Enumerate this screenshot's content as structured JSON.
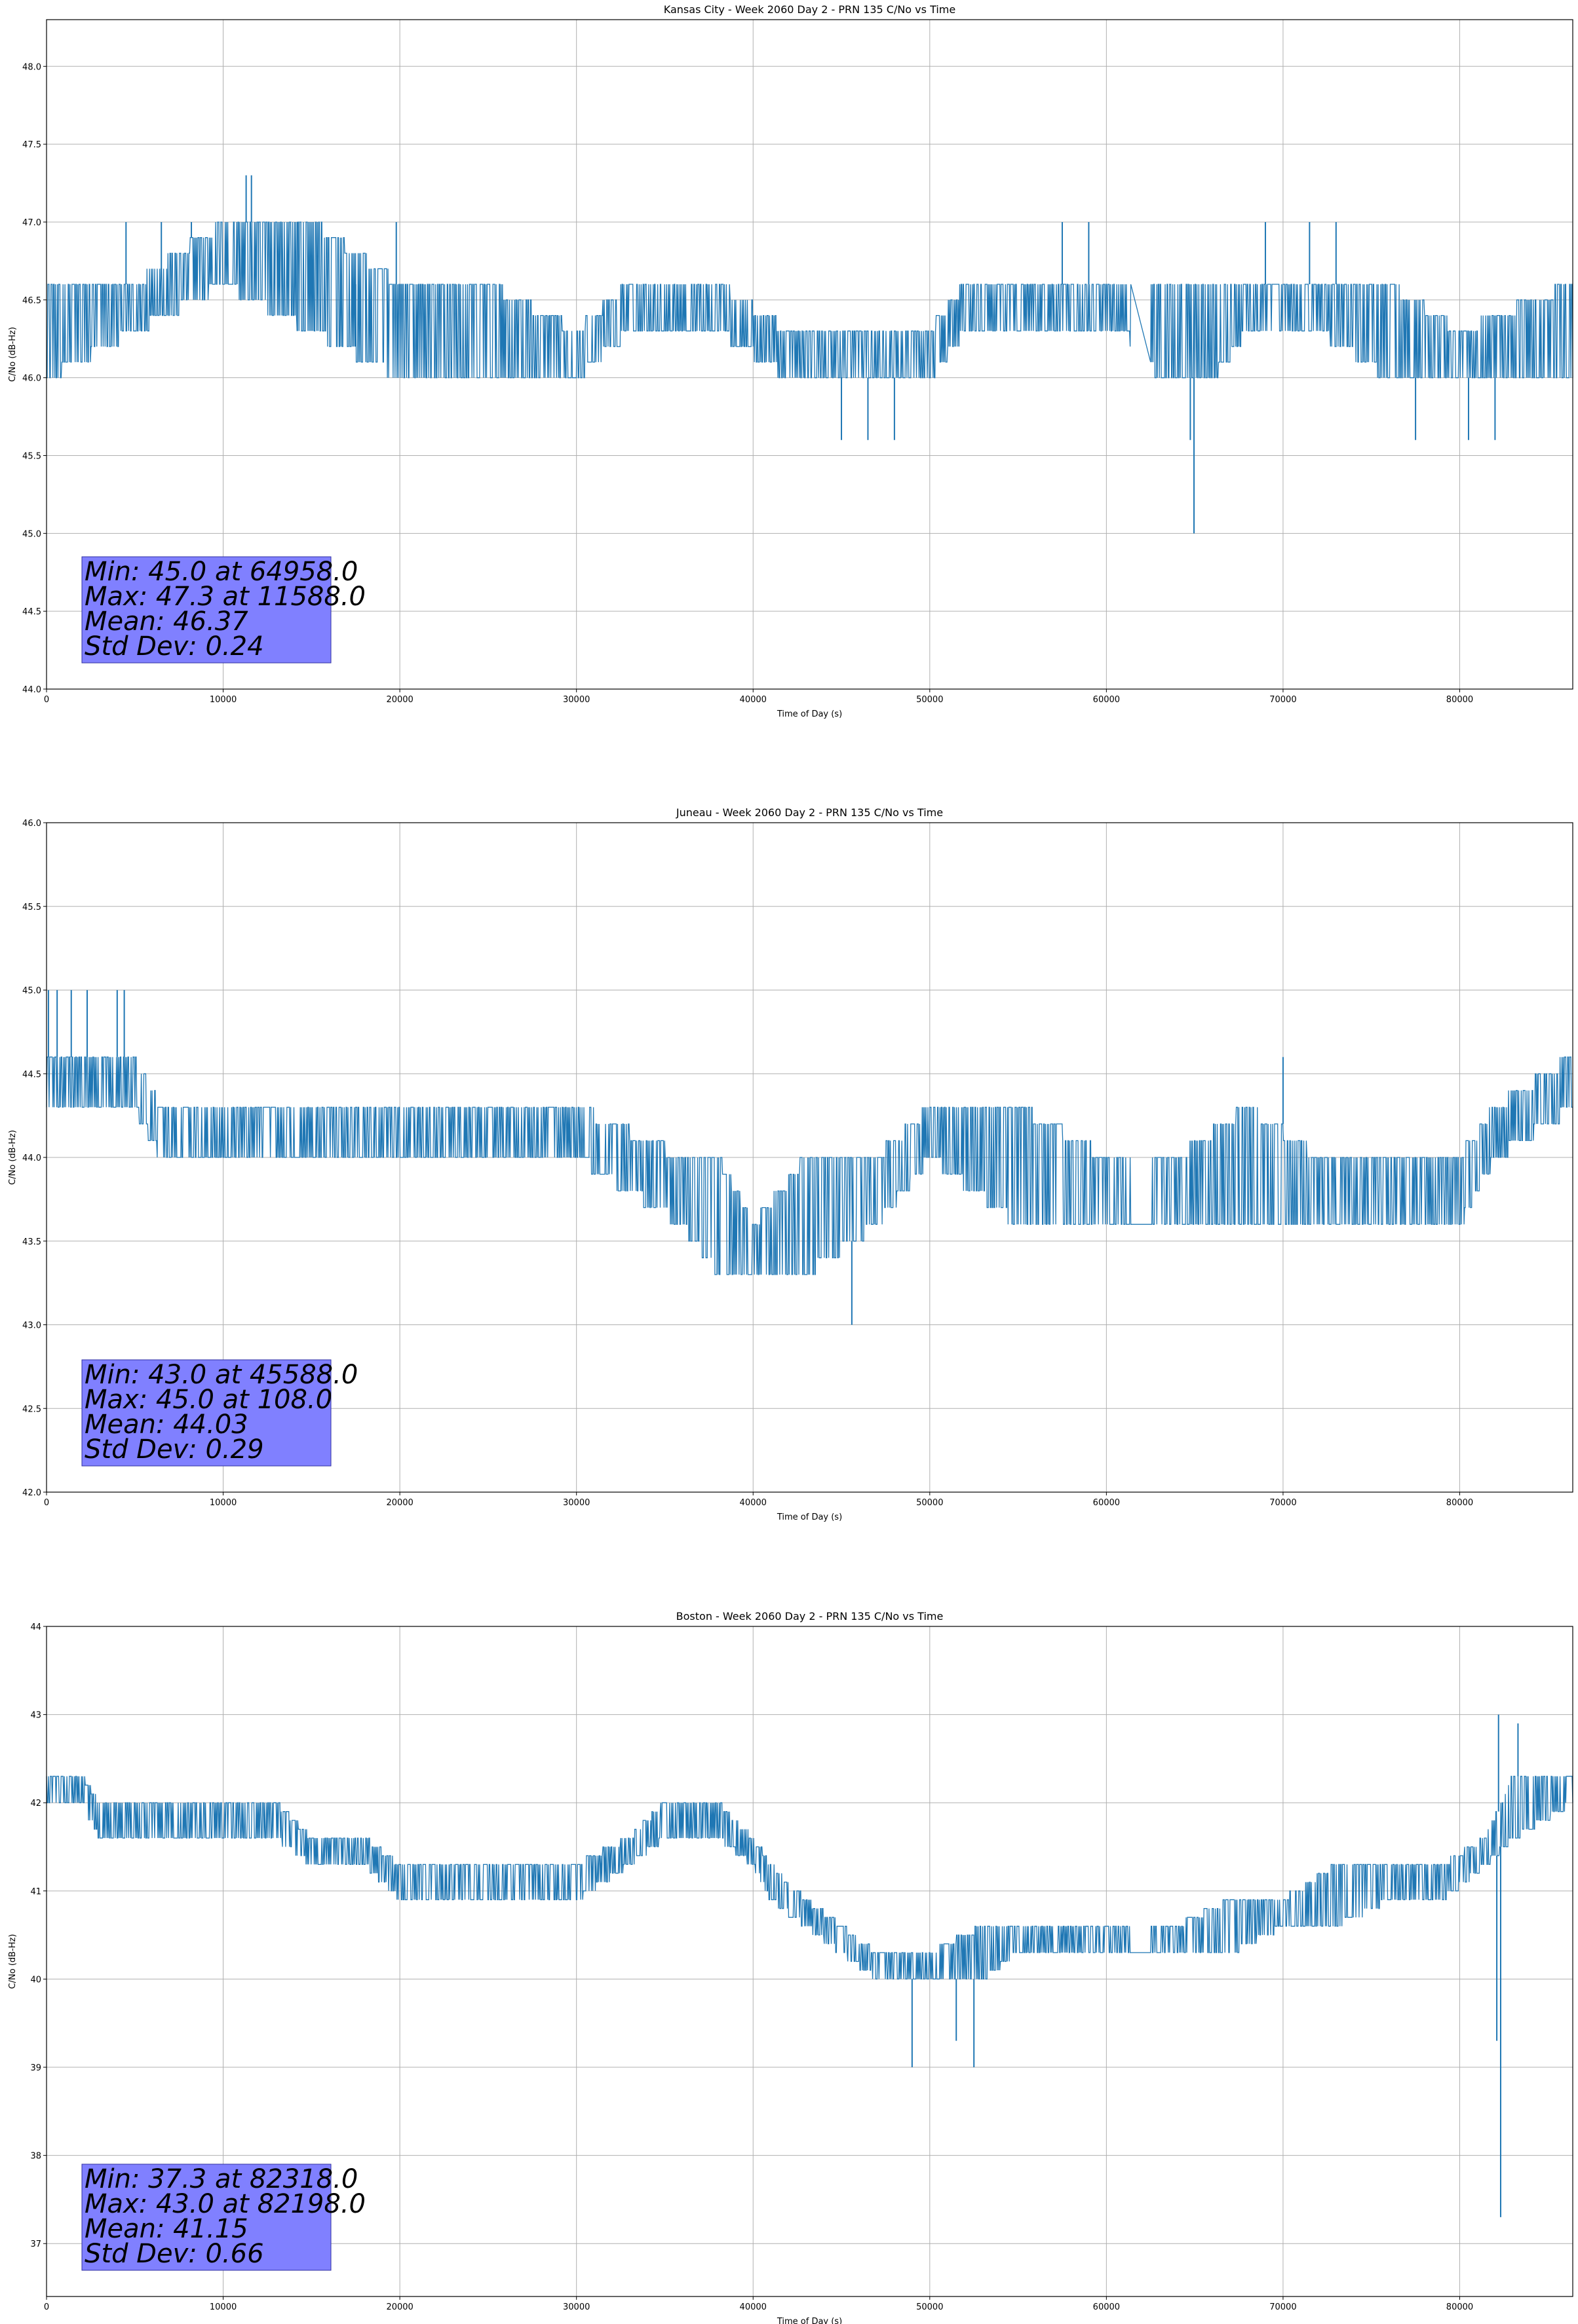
{
  "colors": {
    "line": "#1f77b4",
    "stats_box": "#8080ff",
    "grid": "#b0b0b0"
  },
  "chart_data": [
    {
      "type": "line",
      "title": "Kansas City - Week 2060 Day 2 - PRN 135 C/No vs Time",
      "xlabel": "Time of Day (s)",
      "ylabel": "C/No (dB-Hz)",
      "xlim": [
        0,
        86400
      ],
      "ylim": [
        44.0,
        48.3
      ],
      "xticks": [
        0,
        10000,
        20000,
        30000,
        40000,
        50000,
        60000,
        70000,
        80000
      ],
      "xtick_labels": [
        "0",
        "10000",
        "20000",
        "30000",
        "40000",
        "50000",
        "60000",
        "70000",
        "80000"
      ],
      "yticks": [
        44.0,
        44.5,
        45.0,
        45.5,
        46.0,
        46.5,
        47.0,
        47.5,
        48.0
      ],
      "ytick_labels": [
        "44.0",
        "44.5",
        "45.0",
        "45.5",
        "46.0",
        "46.5",
        "47.0",
        "47.5",
        "48.0"
      ],
      "grid": true,
      "series": [
        {
          "name": "C/No",
          "band_x": [
            0,
            5000,
            10000,
            15000,
            20000,
            25000,
            30000,
            33000,
            38000,
            42000,
            45000,
            50000,
            52000,
            55000,
            61000,
            63000,
            66000,
            68000,
            72000,
            76000,
            80000,
            86400
          ],
          "band_low": [
            46.0,
            46.3,
            46.6,
            46.3,
            46.0,
            46.0,
            46.0,
            46.3,
            46.3,
            46.0,
            46.0,
            46.0,
            46.3,
            46.3,
            46.3,
            46.0,
            46.0,
            46.3,
            46.3,
            46.0,
            46.0,
            46.0
          ],
          "band_high": [
            46.6,
            46.6,
            47.0,
            47.0,
            46.6,
            46.6,
            46.3,
            46.6,
            46.6,
            46.3,
            46.3,
            46.3,
            46.6,
            46.6,
            46.6,
            46.6,
            46.6,
            46.6,
            46.6,
            46.6,
            46.3,
            46.6
          ],
          "gap": [
            61400,
            62500
          ],
          "spike_x": [
            4500,
            6500,
            8200,
            9500,
            11300,
            11600,
            12000,
            14200,
            17500,
            19800,
            45000,
            46500,
            48000,
            57500,
            59000,
            64750,
            64958,
            69000,
            71500,
            73000,
            77500,
            80500,
            82000
          ],
          "spike_y": [
            47.0,
            47.0,
            47.0,
            47.0,
            47.3,
            47.3,
            47.0,
            47.0,
            46.6,
            47.0,
            45.6,
            45.6,
            45.6,
            47.0,
            47.0,
            45.6,
            45.0,
            47.0,
            47.0,
            47.0,
            45.6,
            45.6,
            45.6
          ]
        }
      ],
      "stats": [
        "Min: 45.0 at 64958.0",
        "Max: 47.3 at 11588.0",
        "Mean: 46.37",
        "Std Dev: 0.24"
      ]
    },
    {
      "type": "line",
      "title": "Juneau - Week 2060 Day 2 - PRN 135 C/No vs Time",
      "xlabel": "Time of Day (s)",
      "ylabel": "C/No (dB-Hz)",
      "xlim": [
        0,
        86400
      ],
      "ylim": [
        42.0,
        46.0
      ],
      "xticks": [
        0,
        10000,
        20000,
        30000,
        40000,
        50000,
        60000,
        70000,
        80000
      ],
      "xtick_labels": [
        "0",
        "10000",
        "20000",
        "30000",
        "40000",
        "50000",
        "60000",
        "70000",
        "80000"
      ],
      "yticks": [
        42.0,
        42.5,
        43.0,
        43.5,
        44.0,
        44.5,
        45.0,
        45.5,
        46.0
      ],
      "ytick_labels": [
        "42.0",
        "42.5",
        "43.0",
        "43.5",
        "44.0",
        "44.5",
        "45.0",
        "45.5",
        "46.0"
      ],
      "grid": true,
      "series": [
        {
          "name": "C/No",
          "band_x": [
            0,
            5000,
            6500,
            12000,
            20000,
            25000,
            30000,
            36000,
            38000,
            40000,
            43000,
            47000,
            50000,
            55000,
            60000,
            61000,
            64000,
            68000,
            72000,
            76000,
            80000,
            82000,
            86400
          ],
          "band_low": [
            44.3,
            44.3,
            44.0,
            44.0,
            44.0,
            44.0,
            44.0,
            43.6,
            43.3,
            43.3,
            43.3,
            43.6,
            44.0,
            43.6,
            43.6,
            43.6,
            43.6,
            43.6,
            43.6,
            43.6,
            43.6,
            44.0,
            44.3
          ],
          "band_high": [
            44.6,
            44.6,
            44.3,
            44.3,
            44.3,
            44.3,
            44.3,
            44.0,
            44.0,
            43.6,
            44.0,
            44.0,
            44.3,
            44.3,
            44.0,
            44.0,
            44.0,
            44.3,
            44.0,
            44.0,
            44.0,
            44.3,
            44.6
          ],
          "gap": [
            61400,
            62500
          ],
          "spike_x": [
            108,
            600,
            1400,
            2300,
            4000,
            4400,
            45588,
            70000
          ],
          "spike_y": [
            45.0,
            45.0,
            45.0,
            45.0,
            45.0,
            45.0,
            43.0,
            44.6
          ]
        }
      ],
      "stats": [
        "Min: 43.0 at 45588.0",
        "Max: 45.0 at 108.0",
        "Mean: 44.03",
        "Std Dev: 0.29"
      ]
    },
    {
      "type": "line",
      "title": "Boston - Week 2060 Day 2 - PRN 135 C/No vs Time",
      "xlabel": "Time of Day (s)",
      "ylabel": "C/No (dB-Hz)",
      "xlim": [
        0,
        86400
      ],
      "ylim": [
        36.4,
        44.0
      ],
      "xticks": [
        0,
        10000,
        20000,
        30000,
        40000,
        50000,
        60000,
        70000,
        80000
      ],
      "xtick_labels": [
        "0",
        "10000",
        "20000",
        "30000",
        "40000",
        "50000",
        "60000",
        "70000",
        "80000"
      ],
      "yticks": [
        37,
        38,
        39,
        40,
        41,
        42,
        43,
        44
      ],
      "ytick_labels": [
        "37",
        "38",
        "39",
        "40",
        "41",
        "42",
        "43",
        "44"
      ],
      "grid": true,
      "series": [
        {
          "name": "C/No",
          "band_x": [
            0,
            2000,
            3000,
            7000,
            10000,
            13000,
            15000,
            18000,
            20000,
            25000,
            30000,
            33000,
            35000,
            38000,
            40000,
            41000,
            43000,
            45000,
            47000,
            50000,
            53000,
            55000,
            58000,
            61000,
            64000,
            67000,
            70000,
            73000,
            76000,
            79000,
            81500,
            83000,
            86400
          ],
          "band_low": [
            42.0,
            42.0,
            41.6,
            41.6,
            41.6,
            41.6,
            41.3,
            41.3,
            40.9,
            40.9,
            40.9,
            41.3,
            41.6,
            41.6,
            41.3,
            40.9,
            40.6,
            40.3,
            40.0,
            40.0,
            40.0,
            40.3,
            40.3,
            40.3,
            40.3,
            40.3,
            40.6,
            40.6,
            40.9,
            40.9,
            41.3,
            41.6,
            42.0
          ],
          "band_high": [
            42.3,
            42.3,
            42.0,
            42.0,
            42.0,
            42.0,
            41.6,
            41.6,
            41.3,
            41.3,
            41.3,
            41.6,
            42.0,
            42.0,
            41.6,
            41.3,
            40.9,
            40.6,
            40.3,
            40.3,
            40.6,
            40.6,
            40.6,
            40.6,
            40.6,
            40.9,
            40.9,
            41.3,
            41.3,
            41.3,
            41.6,
            42.3,
            42.3
          ],
          "gap": [
            61400,
            62500
          ],
          "spike_x": [
            49000,
            51500,
            52500,
            82100,
            82198,
            82318,
            83300
          ],
          "spike_y": [
            39.0,
            39.3,
            39.0,
            39.3,
            43.0,
            37.3,
            42.9
          ]
        }
      ],
      "stats": [
        "Min: 37.3 at 82318.0",
        "Max: 43.0 at 82198.0",
        "Mean: 41.15",
        "Std Dev: 0.66"
      ]
    }
  ]
}
